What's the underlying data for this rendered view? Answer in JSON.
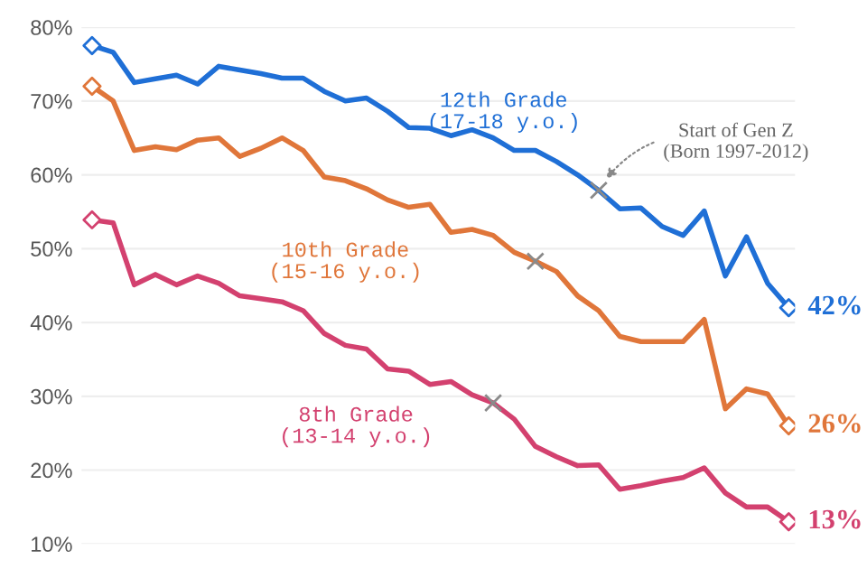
{
  "chart_data": {
    "type": "line",
    "categories": [
      null,
      null,
      null,
      null,
      null,
      null,
      null,
      null,
      null,
      null,
      null,
      null,
      null,
      null,
      null,
      null,
      null,
      null,
      null,
      null,
      null,
      null,
      null,
      null,
      null,
      null,
      null,
      null,
      null,
      null,
      null,
      null,
      null,
      null
    ],
    "series": [
      {
        "name": "12th Grade\n(17-18 y.o.)",
        "color": "#1f6fd6",
        "values": [
          77.5,
          76.6,
          72.5,
          73.0,
          73.5,
          72.3,
          74.7,
          74.2,
          73.7,
          73.1,
          73.1,
          71.3,
          70.0,
          70.4,
          68.6,
          66.4,
          66.3,
          65.3,
          66.1,
          65.0,
          63.3,
          63.3,
          61.8,
          60.0,
          57.9,
          55.4,
          55.5,
          53.0,
          51.8,
          55.1,
          46.3,
          51.6,
          45.3,
          42
        ],
        "value_labels": [
          null,
          null,
          null,
          null,
          null,
          null,
          null,
          null,
          null,
          null,
          null,
          null,
          null,
          null,
          null,
          null,
          null,
          null,
          null,
          null,
          null,
          null,
          null,
          null,
          null,
          null,
          null,
          null,
          null,
          null,
          null,
          null,
          null,
          "42%"
        ]
      },
      {
        "name": "10th Grade\n(15-16 y.o.)",
        "color": "#e0763a",
        "values": [
          72.0,
          70.0,
          63.3,
          63.8,
          63.4,
          64.7,
          65.0,
          62.5,
          63.6,
          65.0,
          63.3,
          59.7,
          59.2,
          58.1,
          56.6,
          55.6,
          56.0,
          52.2,
          52.6,
          51.8,
          49.5,
          48.3,
          46.9,
          43.6,
          41.6,
          38.1,
          37.4,
          37.4,
          37.4,
          40.4,
          28.3,
          31.0,
          30.3,
          26
        ],
        "value_labels": [
          null,
          null,
          null,
          null,
          null,
          null,
          null,
          null,
          null,
          null,
          null,
          null,
          null,
          null,
          null,
          null,
          null,
          null,
          null,
          null,
          null,
          null,
          null,
          null,
          null,
          null,
          null,
          null,
          null,
          null,
          null,
          null,
          null,
          "26%"
        ]
      },
      {
        "name": "8th Grade\n(13-14 y.o.)",
        "color": "#d3416f",
        "values": [
          53.9,
          53.5,
          45.1,
          46.5,
          45.1,
          46.3,
          45.3,
          43.6,
          43.2,
          42.8,
          41.6,
          38.5,
          36.9,
          36.4,
          33.7,
          33.4,
          31.6,
          32.0,
          30.2,
          29.1,
          26.9,
          23.2,
          21.8,
          20.6,
          20.7,
          17.4,
          17.9,
          18.5,
          19.0,
          20.3,
          16.9,
          15.0,
          15.0,
          13
        ],
        "value_labels": [
          null,
          null,
          null,
          null,
          null,
          null,
          null,
          null,
          null,
          null,
          null,
          null,
          null,
          null,
          null,
          null,
          null,
          null,
          null,
          null,
          null,
          null,
          null,
          null,
          null,
          null,
          null,
          null,
          null,
          null,
          null,
          null,
          null,
          "13%"
        ]
      },
      {
        "type": "scatter",
        "color": "#1f6fd6",
        "marker": "diamond",
        "values": [
          77.5,
          null,
          null,
          null,
          null,
          null,
          null,
          null,
          null,
          null,
          null,
          null,
          null,
          null,
          null,
          null,
          null,
          null,
          null,
          null,
          null,
          null,
          null,
          null,
          null,
          null,
          null,
          null,
          null,
          null,
          null,
          null,
          null,
          42
        ]
      },
      {
        "type": "scatter",
        "color": "#e0763a",
        "marker": "diamond",
        "values": [
          72.0,
          null,
          null,
          null,
          null,
          null,
          null,
          null,
          null,
          null,
          null,
          null,
          null,
          null,
          null,
          null,
          null,
          null,
          null,
          null,
          null,
          null,
          null,
          null,
          null,
          null,
          null,
          null,
          null,
          null,
          null,
          null,
          null,
          26
        ]
      },
      {
        "type": "scatter",
        "color": "#d3416f",
        "marker": "diamond",
        "values": [
          53.9,
          null,
          null,
          null,
          null,
          null,
          null,
          null,
          null,
          null,
          null,
          null,
          null,
          null,
          null,
          null,
          null,
          null,
          null,
          null,
          null,
          null,
          null,
          null,
          null,
          null,
          null,
          null,
          null,
          null,
          null,
          null,
          null,
          13
        ]
      },
      {
        "type": "scatter",
        "color": "#8a8a8a",
        "marker": "cross",
        "values": [
          null,
          null,
          null,
          null,
          null,
          null,
          null,
          null,
          null,
          null,
          null,
          null,
          null,
          null,
          null,
          null,
          null,
          null,
          null,
          29.1,
          null,
          48.3,
          null,
          null,
          57.9,
          null,
          null,
          null,
          null,
          null,
          null,
          null,
          null,
          null
        ]
      }
    ],
    "ylim": [
      10,
      80
    ],
    "yticks": [
      {
        "value": 10,
        "label": "10%"
      },
      {
        "value": 20,
        "label": "20%"
      },
      {
        "value": 30,
        "label": "30%"
      },
      {
        "value": 40,
        "label": "40%"
      },
      {
        "value": 50,
        "label": "50%"
      },
      {
        "value": 60,
        "label": "60%"
      },
      {
        "value": 70,
        "label": "70%"
      },
      {
        "value": 80,
        "label": "80%"
      }
    ],
    "tick_labels": "y",
    "grid": "y",
    "legend": false,
    "line_style": "solid",
    "annotations": [
      "Start of Gen Z\n(Born 1997-2012)"
    ]
  }
}
